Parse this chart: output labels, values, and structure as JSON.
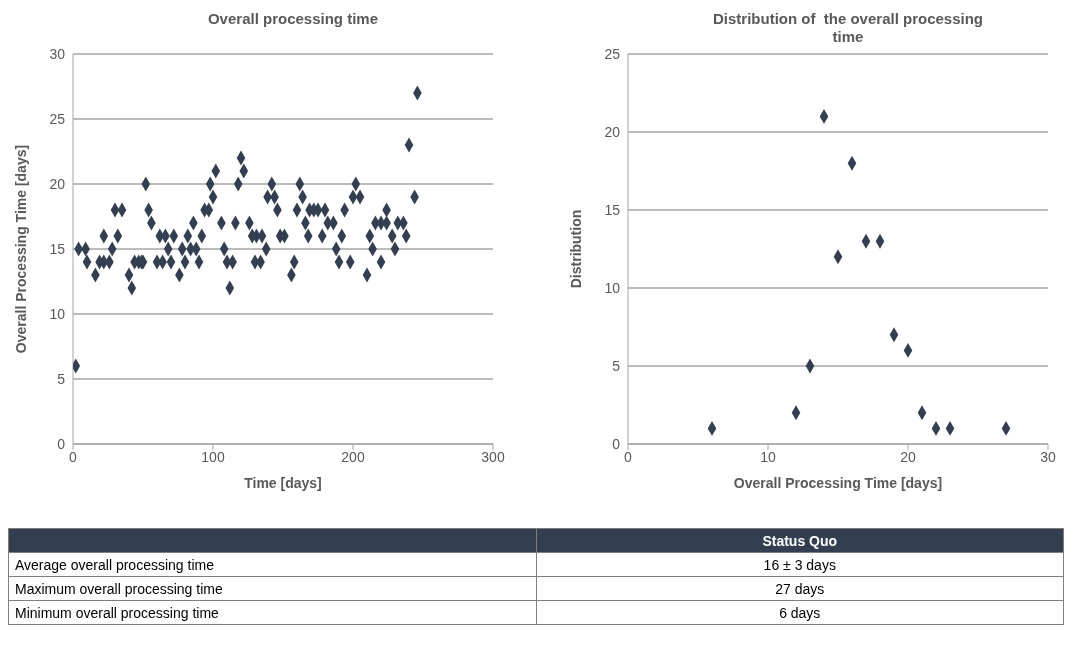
{
  "chart_data": [
    {
      "type": "scatter",
      "title": "Overall processing time",
      "xlabel": "Time [days]",
      "ylabel": "Overall Processing Time [days]",
      "color": "#333f50",
      "marker": "diamond",
      "grid": "y",
      "xlim": [
        0,
        300
      ],
      "xticks": [
        0,
        100,
        200,
        300
      ],
      "ylim": [
        0,
        30
      ],
      "yticks": [
        0,
        5,
        10,
        15,
        20,
        25,
        30
      ],
      "x": [
        2,
        4,
        9,
        10,
        16,
        19,
        22,
        22,
        26,
        28,
        30,
        32,
        35,
        40,
        42,
        44,
        47,
        49,
        50,
        52,
        54,
        56,
        60,
        62,
        64,
        66,
        68,
        70,
        72,
        76,
        78,
        80,
        82,
        84,
        86,
        88,
        90,
        92,
        94,
        97,
        98,
        100,
        102,
        106,
        108,
        110,
        112,
        114,
        116,
        118,
        120,
        122,
        126,
        128,
        130,
        131,
        134,
        135,
        138,
        139,
        142,
        144,
        146,
        148,
        151,
        156,
        158,
        160,
        162,
        164,
        166,
        168,
        169,
        172,
        175,
        178,
        180,
        182,
        186,
        188,
        190,
        192,
        194,
        198,
        200,
        202,
        205,
        210,
        212,
        214,
        216,
        220,
        220,
        224,
        224,
        228,
        230,
        232,
        236,
        238,
        240,
        244,
        246
      ],
      "values": [
        6,
        15,
        15,
        14,
        13,
        14,
        14,
        16,
        14,
        15,
        18,
        16,
        18,
        13,
        12,
        14,
        14,
        14,
        14,
        20,
        18,
        17,
        14,
        16,
        14,
        16,
        15,
        14,
        16,
        13,
        15,
        14,
        16,
        15,
        17,
        15,
        14,
        16,
        18,
        18,
        20,
        19,
        21,
        17,
        15,
        14,
        12,
        14,
        17,
        20,
        22,
        21,
        17,
        16,
        14,
        16,
        14,
        16,
        15,
        19,
        20,
        19,
        18,
        16,
        16,
        13,
        14,
        18,
        20,
        19,
        17,
        16,
        18,
        18,
        18,
        16,
        18,
        17,
        17,
        15,
        14,
        16,
        18,
        14,
        19,
        20,
        19,
        13,
        16,
        15,
        17,
        17,
        14,
        17,
        18,
        16,
        15,
        17,
        17,
        16,
        23,
        19,
        27
      ]
    },
    {
      "type": "scatter",
      "title": "Distribution of  the overall processing time",
      "xlabel": "Overall Processing Time [days]",
      "ylabel": "Distribution",
      "color": "#333f50",
      "marker": "diamond",
      "grid": "y",
      "xlim": [
        0,
        30
      ],
      "xticks": [
        0,
        10,
        20,
        30
      ],
      "ylim": [
        0,
        25
      ],
      "yticks": [
        0,
        5,
        10,
        15,
        20,
        25
      ],
      "x": [
        6,
        12,
        13,
        14,
        15,
        16,
        17,
        18,
        19,
        20,
        21,
        22,
        23,
        27
      ],
      "values": [
        1,
        2,
        5,
        21,
        12,
        18,
        13,
        13,
        7,
        6,
        2,
        1,
        1,
        1
      ]
    },
    {
      "type": "other",
      "annotations": [
        "Status Quo",
        "Average overall processing time",
        "16 ± 3 days",
        "Maximum overall processing time",
        "27 days",
        "Minimum overall processing time",
        "6 days"
      ]
    }
  ]
}
